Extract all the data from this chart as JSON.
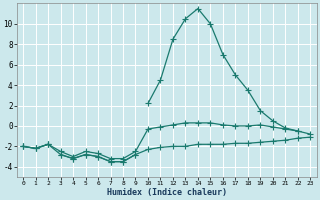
{
  "xlabel": "Humidex (Indice chaleur)",
  "background_color": "#cce8ec",
  "grid_color": "#ffffff",
  "line_color": "#1a7a6e",
  "x_values": [
    0,
    1,
    2,
    3,
    4,
    5,
    6,
    7,
    8,
    9,
    10,
    11,
    12,
    13,
    14,
    15,
    16,
    17,
    18,
    19,
    20,
    21,
    22,
    23
  ],
  "line_bottom_y": [
    -2.0,
    -2.2,
    -1.8,
    -2.8,
    -3.2,
    -2.8,
    -3.0,
    -3.5,
    -3.5,
    -2.8,
    -2.3,
    -2.1,
    -2.0,
    -2.0,
    -1.8,
    -1.8,
    -1.8,
    -1.7,
    -1.7,
    -1.6,
    -1.5,
    -1.4,
    -1.2,
    -1.1
  ],
  "line_mid_y": [
    -2.0,
    -2.2,
    -1.8,
    -2.5,
    -3.0,
    -2.5,
    -2.7,
    -3.2,
    -3.2,
    -2.5,
    -0.3,
    -0.1,
    0.1,
    0.3,
    0.3,
    0.3,
    0.1,
    0.0,
    0.0,
    0.1,
    -0.1,
    -0.3,
    -0.5,
    -0.8
  ],
  "line_low_y": [
    null,
    null,
    null,
    -2.8,
    -3.2,
    -2.8,
    -3.0,
    -3.5,
    -3.5,
    -2.8,
    null,
    null,
    null,
    null,
    null,
    null,
    null,
    null,
    null,
    null,
    null,
    null,
    null,
    null
  ],
  "line_top_y": [
    -2.0,
    -2.2,
    -1.8,
    null,
    null,
    null,
    null,
    null,
    null,
    null,
    2.2,
    4.5,
    8.5,
    10.5,
    11.5,
    10.0,
    7.0,
    5.0,
    3.5,
    1.5,
    0.5,
    -0.2,
    -0.5,
    null
  ],
  "ylim": [
    -5,
    12
  ],
  "xlim": [
    -0.5,
    23.5
  ],
  "yticks": [
    -4,
    -2,
    0,
    2,
    4,
    6,
    8,
    10
  ],
  "xticks": [
    0,
    1,
    2,
    3,
    4,
    5,
    6,
    7,
    8,
    9,
    10,
    11,
    12,
    13,
    14,
    15,
    16,
    17,
    18,
    19,
    20,
    21,
    22,
    23
  ]
}
